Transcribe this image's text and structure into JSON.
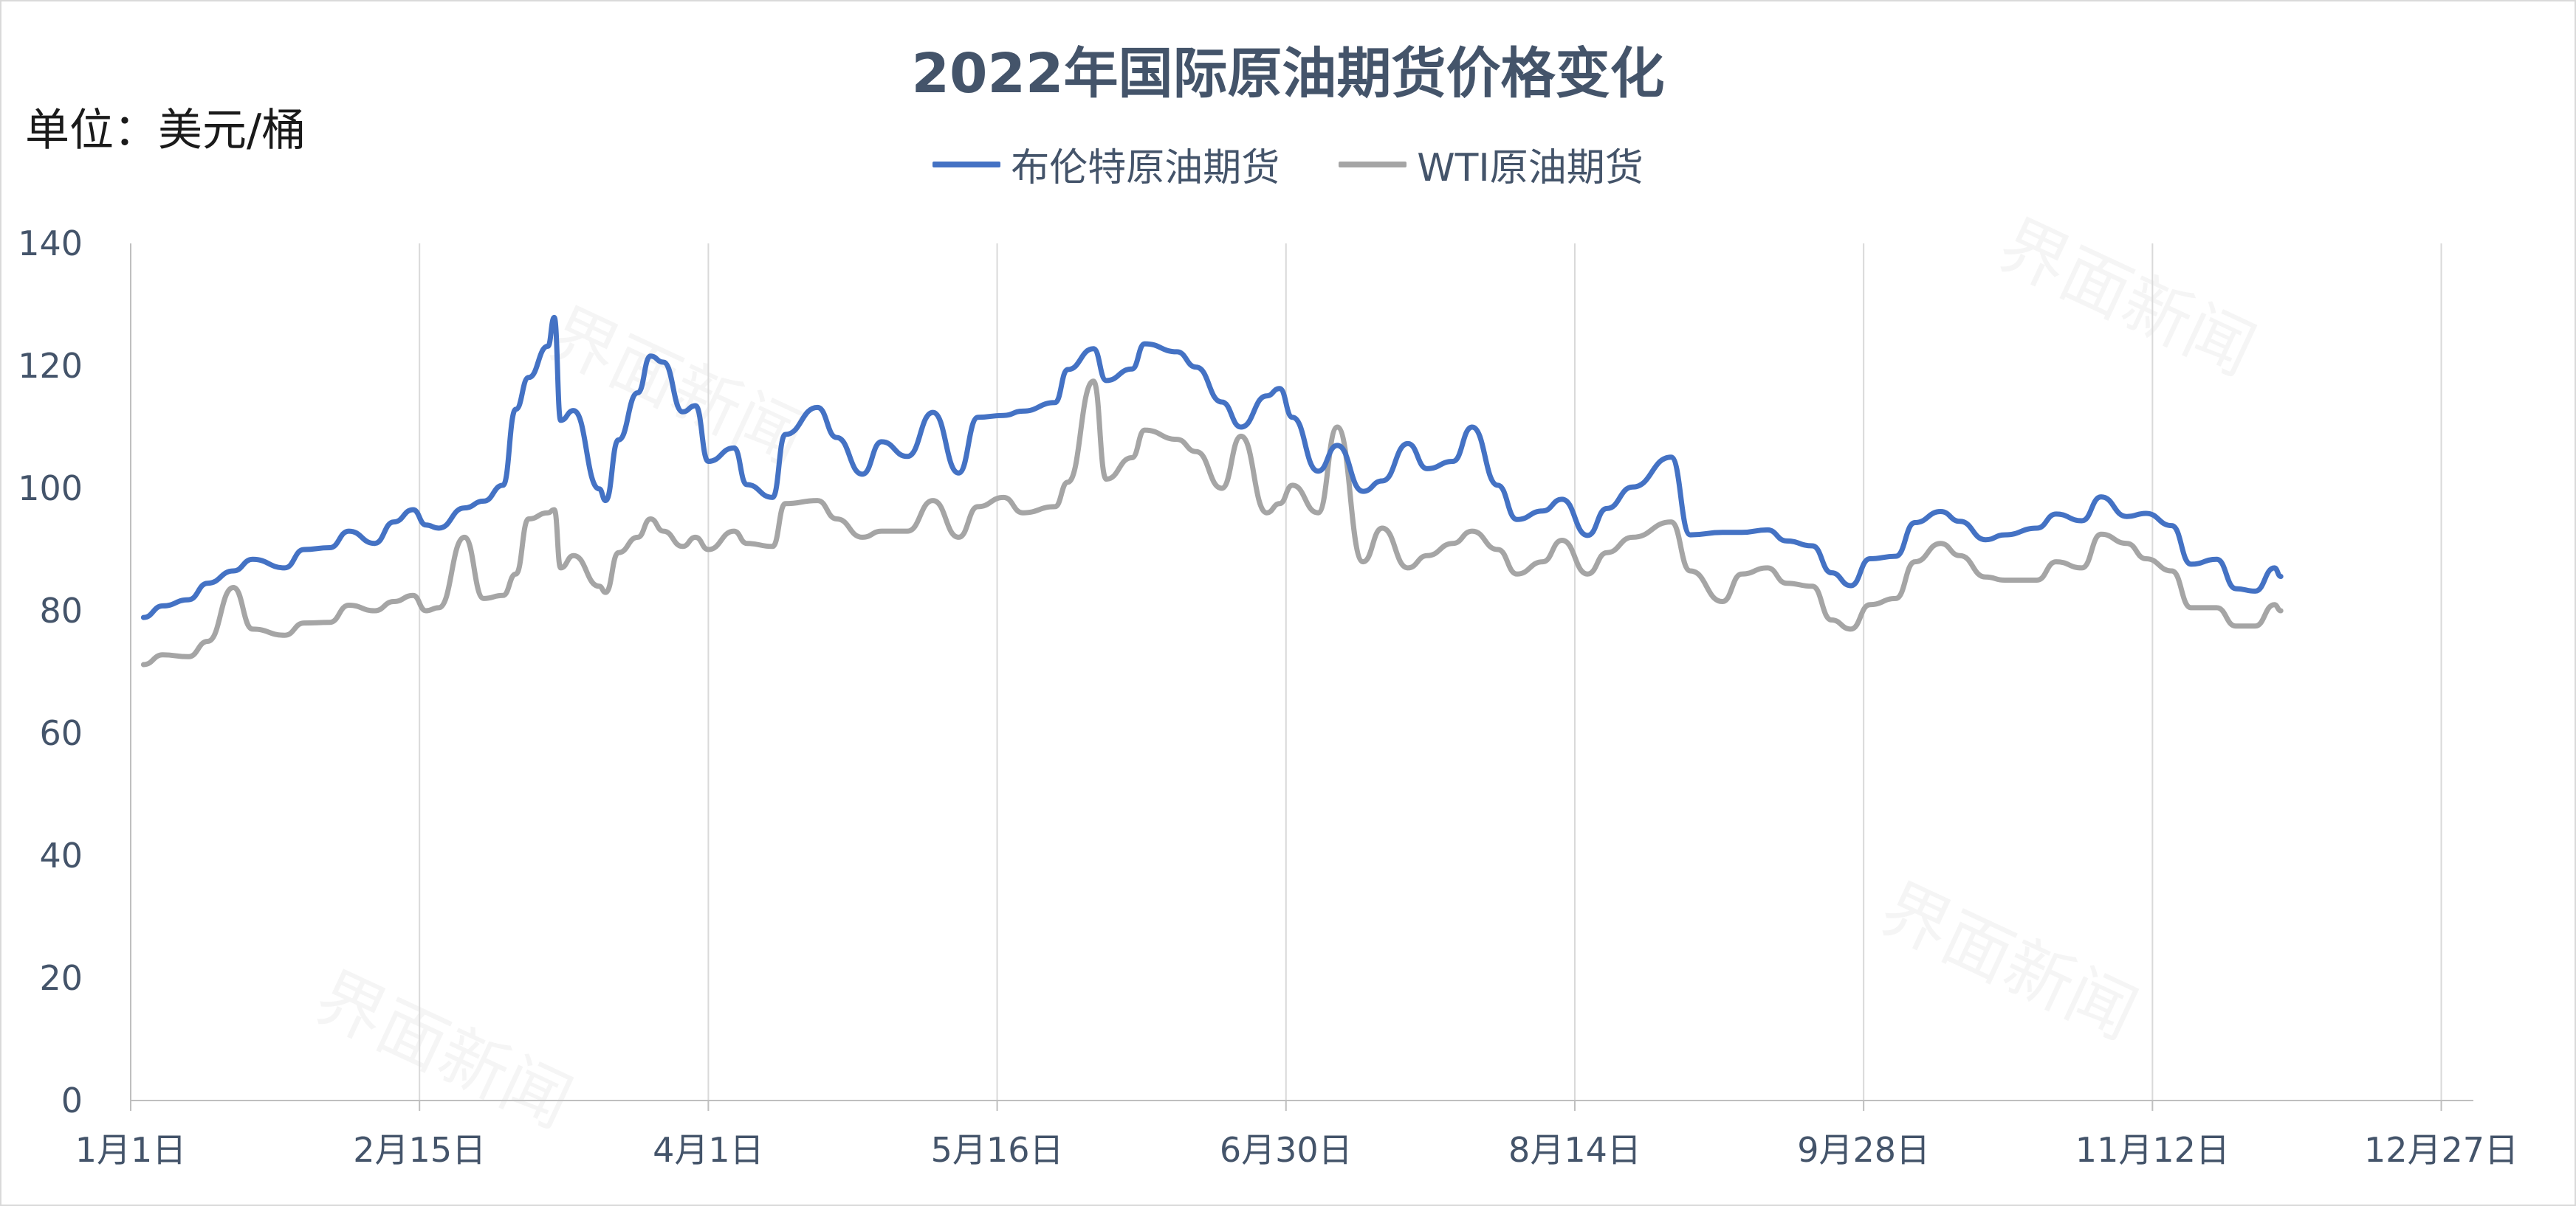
{
  "chart_data": {
    "type": "line",
    "title": "2022年国际原油期货价格变化",
    "unit_label": "单位：美元/桶",
    "watermark": "界面新闻",
    "x_start": "2022-01-01",
    "x_end": "2022-12-31",
    "x_ticks": [
      "1月1日",
      "2月15日",
      "4月1日",
      "5月16日",
      "6月30日",
      "8月14日",
      "9月28日",
      "11月12日",
      "12月27日"
    ],
    "y_ticks": [
      "0",
      "20",
      "40",
      "60",
      "80",
      "100",
      "120",
      "140"
    ],
    "ylim": [
      0,
      140
    ],
    "grid": "vertical",
    "legend_position": "top",
    "series": [
      {
        "name": "布伦特原油期货",
        "color": "#4472c4",
        "points": [
          [
            "2022-01-03",
            78.9
          ],
          [
            "2022-01-06",
            80.8
          ],
          [
            "2022-01-10",
            81.8
          ],
          [
            "2022-01-13",
            84.5
          ],
          [
            "2022-01-17",
            86.5
          ],
          [
            "2022-01-20",
            88.4
          ],
          [
            "2022-01-25",
            87.0
          ],
          [
            "2022-01-28",
            90.0
          ],
          [
            "2022-02-01",
            90.3
          ],
          [
            "2022-02-04",
            93.0
          ],
          [
            "2022-02-08",
            91.0
          ],
          [
            "2022-02-11",
            94.5
          ],
          [
            "2022-02-14",
            96.5
          ],
          [
            "2022-02-16",
            94.0
          ],
          [
            "2022-02-18",
            93.5
          ],
          [
            "2022-02-22",
            96.8
          ],
          [
            "2022-02-25",
            97.9
          ],
          [
            "2022-02-28",
            100.5
          ],
          [
            "2022-03-02",
            112.9
          ],
          [
            "2022-03-04",
            118.1
          ],
          [
            "2022-03-07",
            123.2
          ],
          [
            "2022-03-08",
            127.9
          ],
          [
            "2022-03-09",
            111.1
          ],
          [
            "2022-03-11",
            112.7
          ],
          [
            "2022-03-15",
            99.9
          ],
          [
            "2022-03-16",
            98.0
          ],
          [
            "2022-03-18",
            107.9
          ],
          [
            "2022-03-21",
            115.6
          ],
          [
            "2022-03-23",
            121.6
          ],
          [
            "2022-03-25",
            120.6
          ],
          [
            "2022-03-28",
            112.5
          ],
          [
            "2022-03-30",
            113.5
          ],
          [
            "2022-04-01",
            104.4
          ],
          [
            "2022-04-05",
            106.6
          ],
          [
            "2022-04-07",
            100.6
          ],
          [
            "2022-04-11",
            98.5
          ],
          [
            "2022-04-13",
            108.8
          ],
          [
            "2022-04-18",
            113.2
          ],
          [
            "2022-04-21",
            108.3
          ],
          [
            "2022-04-25",
            102.3
          ],
          [
            "2022-04-28",
            107.6
          ],
          [
            "2022-05-02",
            105.2
          ],
          [
            "2022-05-06",
            112.4
          ],
          [
            "2022-05-10",
            102.5
          ],
          [
            "2022-05-13",
            111.6
          ],
          [
            "2022-05-17",
            111.9
          ],
          [
            "2022-05-20",
            112.6
          ],
          [
            "2022-05-25",
            114.0
          ],
          [
            "2022-05-27",
            119.4
          ],
          [
            "2022-05-31",
            122.8
          ],
          [
            "2022-06-02",
            117.6
          ],
          [
            "2022-06-06",
            119.5
          ],
          [
            "2022-06-08",
            123.6
          ],
          [
            "2022-06-13",
            122.3
          ],
          [
            "2022-06-16",
            119.8
          ],
          [
            "2022-06-20",
            114.1
          ],
          [
            "2022-06-23",
            110.0
          ],
          [
            "2022-06-27",
            115.1
          ],
          [
            "2022-06-29",
            116.3
          ],
          [
            "2022-07-01",
            111.6
          ],
          [
            "2022-07-05",
            102.8
          ],
          [
            "2022-07-08",
            107.0
          ],
          [
            "2022-07-12",
            99.5
          ],
          [
            "2022-07-15",
            101.2
          ],
          [
            "2022-07-19",
            107.3
          ],
          [
            "2022-07-22",
            103.2
          ],
          [
            "2022-07-26",
            104.4
          ],
          [
            "2022-07-29",
            110.0
          ],
          [
            "2022-08-02",
            100.5
          ],
          [
            "2022-08-05",
            94.9
          ],
          [
            "2022-08-09",
            96.3
          ],
          [
            "2022-08-12",
            98.2
          ],
          [
            "2022-08-16",
            92.3
          ],
          [
            "2022-08-19",
            96.7
          ],
          [
            "2022-08-23",
            100.2
          ],
          [
            "2022-08-29",
            105.1
          ],
          [
            "2022-09-01",
            92.4
          ],
          [
            "2022-09-06",
            92.8
          ],
          [
            "2022-09-09",
            92.8
          ],
          [
            "2022-09-13",
            93.2
          ],
          [
            "2022-09-16",
            91.4
          ],
          [
            "2022-09-20",
            90.6
          ],
          [
            "2022-09-23",
            86.2
          ],
          [
            "2022-09-26",
            84.1
          ],
          [
            "2022-09-29",
            88.5
          ],
          [
            "2022-10-03",
            88.9
          ],
          [
            "2022-10-06",
            94.4
          ],
          [
            "2022-10-10",
            96.2
          ],
          [
            "2022-10-13",
            94.6
          ],
          [
            "2022-10-17",
            91.6
          ],
          [
            "2022-10-20",
            92.4
          ],
          [
            "2022-10-25",
            93.5
          ],
          [
            "2022-10-28",
            95.8
          ],
          [
            "2022-11-01",
            94.7
          ],
          [
            "2022-11-04",
            98.6
          ],
          [
            "2022-11-08",
            95.4
          ],
          [
            "2022-11-11",
            95.9
          ],
          [
            "2022-11-15",
            93.9
          ],
          [
            "2022-11-18",
            87.6
          ],
          [
            "2022-11-22",
            88.4
          ],
          [
            "2022-11-25",
            83.6
          ],
          [
            "2022-11-28",
            83.2
          ],
          [
            "2022-12-01",
            87.0
          ],
          [
            "2022-12-02",
            85.6
          ]
        ]
      },
      {
        "name": "WTI原油期货",
        "color": "#a5a5a5",
        "points": [
          [
            "2022-01-03",
            71.2
          ],
          [
            "2022-01-06",
            72.8
          ],
          [
            "2022-01-10",
            72.5
          ],
          [
            "2022-01-13",
            75.0
          ],
          [
            "2022-01-17",
            83.8
          ],
          [
            "2022-01-20",
            77.0
          ],
          [
            "2022-01-25",
            76.0
          ],
          [
            "2022-01-28",
            78.0
          ],
          [
            "2022-02-01",
            78.1
          ],
          [
            "2022-02-04",
            80.9
          ],
          [
            "2022-02-08",
            80.0
          ],
          [
            "2022-02-11",
            81.5
          ],
          [
            "2022-02-14",
            82.5
          ],
          [
            "2022-02-16",
            80.0
          ],
          [
            "2022-02-18",
            80.5
          ],
          [
            "2022-02-22",
            92.0
          ],
          [
            "2022-02-25",
            82.0
          ],
          [
            "2022-02-28",
            82.5
          ],
          [
            "2022-03-02",
            86.0
          ],
          [
            "2022-03-04",
            95.0
          ],
          [
            "2022-03-07",
            96.0
          ],
          [
            "2022-03-08",
            96.5
          ],
          [
            "2022-03-09",
            87.0
          ],
          [
            "2022-03-11",
            89.0
          ],
          [
            "2022-03-15",
            84.0
          ],
          [
            "2022-03-16",
            83.0
          ],
          [
            "2022-03-18",
            89.5
          ],
          [
            "2022-03-21",
            92.0
          ],
          [
            "2022-03-23",
            95.0
          ],
          [
            "2022-03-25",
            93.0
          ],
          [
            "2022-03-28",
            90.5
          ],
          [
            "2022-03-30",
            92.0
          ],
          [
            "2022-04-01",
            90.0
          ],
          [
            "2022-04-05",
            93.0
          ],
          [
            "2022-04-07",
            91.0
          ],
          [
            "2022-04-11",
            90.5
          ],
          [
            "2022-04-13",
            97.5
          ],
          [
            "2022-04-18",
            98.0
          ],
          [
            "2022-04-21",
            95.0
          ],
          [
            "2022-04-25",
            92.0
          ],
          [
            "2022-04-28",
            93.0
          ],
          [
            "2022-05-02",
            93.0
          ],
          [
            "2022-05-06",
            98.0
          ],
          [
            "2022-05-10",
            92.0
          ],
          [
            "2022-05-13",
            97.0
          ],
          [
            "2022-05-17",
            98.5
          ],
          [
            "2022-05-20",
            96.0
          ],
          [
            "2022-05-25",
            97.0
          ],
          [
            "2022-05-27",
            101.0
          ],
          [
            "2022-05-31",
            117.5
          ],
          [
            "2022-06-02",
            101.5
          ],
          [
            "2022-06-06",
            105.0
          ],
          [
            "2022-06-08",
            109.5
          ],
          [
            "2022-06-13",
            108.0
          ],
          [
            "2022-06-16",
            106.0
          ],
          [
            "2022-06-20",
            100.0
          ],
          [
            "2022-06-23",
            108.5
          ],
          [
            "2022-06-27",
            96.0
          ],
          [
            "2022-06-29",
            97.5
          ],
          [
            "2022-07-01",
            100.5
          ],
          [
            "2022-07-05",
            96.0
          ],
          [
            "2022-07-08",
            110.0
          ],
          [
            "2022-07-12",
            88.0
          ],
          [
            "2022-07-15",
            93.5
          ],
          [
            "2022-07-19",
            87.0
          ],
          [
            "2022-07-22",
            89.0
          ],
          [
            "2022-07-26",
            91.0
          ],
          [
            "2022-07-29",
            93.0
          ],
          [
            "2022-08-02",
            90.0
          ],
          [
            "2022-08-05",
            86.0
          ],
          [
            "2022-08-09",
            88.0
          ],
          [
            "2022-08-12",
            91.5
          ],
          [
            "2022-08-16",
            86.0
          ],
          [
            "2022-08-19",
            89.5
          ],
          [
            "2022-08-23",
            92.0
          ],
          [
            "2022-08-29",
            94.5
          ],
          [
            "2022-09-01",
            86.5
          ],
          [
            "2022-09-06",
            81.5
          ],
          [
            "2022-09-09",
            86.0
          ],
          [
            "2022-09-13",
            87.0
          ],
          [
            "2022-09-16",
            84.5
          ],
          [
            "2022-09-20",
            84.0
          ],
          [
            "2022-09-23",
            78.5
          ],
          [
            "2022-09-26",
            77.0
          ],
          [
            "2022-09-29",
            81.0
          ],
          [
            "2022-10-03",
            82.0
          ],
          [
            "2022-10-06",
            88.0
          ],
          [
            "2022-10-10",
            91.0
          ],
          [
            "2022-10-13",
            89.0
          ],
          [
            "2022-10-17",
            85.5
          ],
          [
            "2022-10-20",
            85.0
          ],
          [
            "2022-10-25",
            85.0
          ],
          [
            "2022-10-28",
            88.0
          ],
          [
            "2022-11-01",
            87.0
          ],
          [
            "2022-11-04",
            92.5
          ],
          [
            "2022-11-08",
            91.0
          ],
          [
            "2022-11-11",
            88.5
          ],
          [
            "2022-11-15",
            86.5
          ],
          [
            "2022-11-18",
            80.5
          ],
          [
            "2022-11-22",
            80.5
          ],
          [
            "2022-11-25",
            77.5
          ],
          [
            "2022-11-28",
            77.5
          ],
          [
            "2022-12-01",
            81.0
          ],
          [
            "2022-12-02",
            80.0
          ]
        ]
      }
    ]
  }
}
